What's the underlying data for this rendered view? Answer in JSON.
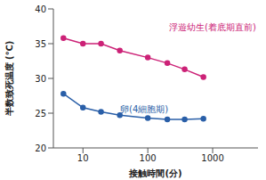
{
  "chart_data": {
    "type": "line",
    "x_label": "接触時間(分)",
    "y_label": "半数致死温度 (℃)",
    "x": [
      5,
      10,
      19,
      37,
      100,
      200,
      370,
      720
    ],
    "series": [
      {
        "name": "浮遊幼生(着底期直前)",
        "color": "#cc2277",
        "marker": "circle",
        "values": [
          35.8,
          35,
          35,
          34,
          33,
          32.2,
          31.3,
          30.2
        ]
      },
      {
        "name": "卵(4細胞期)",
        "color": "#2a5fa8",
        "marker": "circle",
        "values": [
          27.8,
          25.8,
          25.2,
          24.7,
          24.3,
          24.1,
          24.1,
          24.2
        ]
      }
    ],
    "log": "x",
    "xlim": [
      3.5,
      5000
    ],
    "xticks": [
      10,
      100,
      1000
    ],
    "ylim": [
      20,
      40
    ],
    "yticks": [
      20,
      25,
      30,
      35,
      40
    ],
    "grid": false
  }
}
